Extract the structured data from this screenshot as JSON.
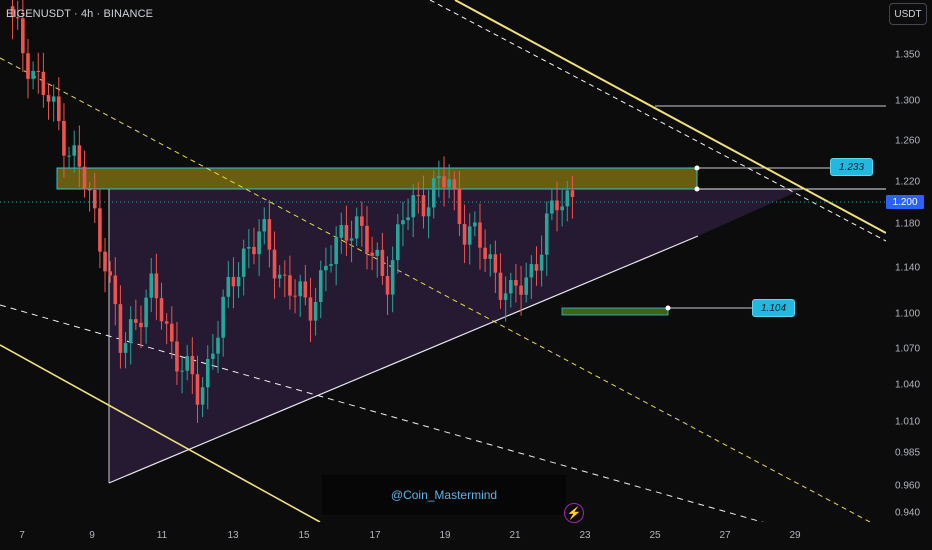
{
  "header": {
    "title": "EIGENUSDT · 4h · BINANCE"
  },
  "toolbar": {
    "currency_label": "USDT"
  },
  "price_scale": {
    "ticks": [
      "1.350",
      "1.300",
      "1.260",
      "1.220",
      "1.180",
      "1.140",
      "1.100",
      "1.070",
      "1.040",
      "1.010",
      "0.985",
      "0.960",
      "0.940"
    ],
    "current_price": "1.200"
  },
  "time_scale": {
    "ticks": [
      "7",
      "9",
      "11",
      "13",
      "15",
      "17",
      "19",
      "21",
      "23",
      "25",
      "27",
      "29"
    ]
  },
  "annotations": {
    "resistance_label": "1.233",
    "support_label": "1.104",
    "watermark": "@Coin_Mastermind"
  },
  "colors": {
    "bull": "#26a69a",
    "bear": "#ef5350",
    "trendline": "#f0e07a",
    "zone_fill": "#8a7a10",
    "triangle_fill": "#3a2650",
    "label_bg": "#22b8e0",
    "current_price_bg": "#2962ff"
  },
  "chart_data": {
    "type": "candlestick",
    "symbol": "EIGENUSDT",
    "interval": "4h",
    "exchange": "BINANCE",
    "x_axis_ticks": [
      "7",
      "9",
      "11",
      "13",
      "15",
      "17",
      "19",
      "21",
      "23",
      "25",
      "27",
      "29"
    ],
    "y_axis_ticks": [
      1.35,
      1.3,
      1.26,
      1.22,
      1.18,
      1.14,
      1.1,
      1.07,
      1.04,
      1.01,
      0.985,
      0.96,
      0.94
    ],
    "current_price": 1.2,
    "levels": [
      {
        "label": "1.233",
        "value": 1.233
      },
      {
        "label": "1.104",
        "value": 1.104
      }
    ],
    "approx_close_path": [
      1.36,
      1.33,
      1.3,
      1.27,
      1.24,
      1.2,
      1.15,
      1.06,
      1.1,
      1.12,
      1.08,
      1.05,
      1.02,
      1.08,
      1.12,
      1.16,
      1.17,
      1.14,
      1.12,
      1.1,
      1.14,
      1.16,
      1.19,
      1.15,
      1.13,
      1.18,
      1.2,
      1.21,
      1.22,
      1.18,
      1.16,
      1.14,
      1.11,
      1.13,
      1.16,
      1.2,
      1.21
    ]
  }
}
